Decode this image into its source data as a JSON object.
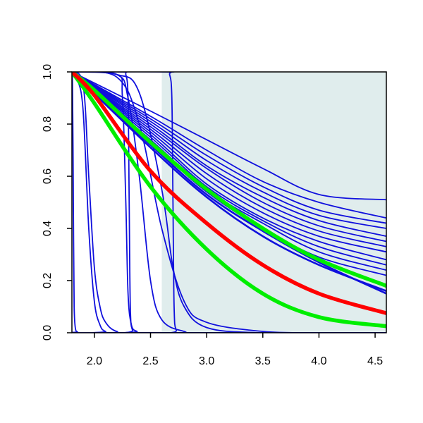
{
  "chart_data": {
    "type": "line",
    "title": "",
    "xlabel": "",
    "ylabel": "",
    "xlim": [
      1.8,
      4.6
    ],
    "ylim": [
      0.0,
      1.0
    ],
    "x_ticks": [
      2.0,
      2.5,
      3.0,
      3.5,
      4.0,
      4.5
    ],
    "x_tick_labels": [
      "2.0",
      "2.5",
      "3.0",
      "3.5",
      "4.0",
      "4.5"
    ],
    "y_ticks": [
      0.0,
      0.2,
      0.4,
      0.6,
      0.8,
      1.0
    ],
    "y_tick_labels": [
      "0.0",
      "0.2",
      "0.4",
      "0.6",
      "0.8",
      "1.0"
    ],
    "grid": false,
    "legend": "none",
    "shaded_region": {
      "x": [
        2.6,
        4.6
      ],
      "color": "#e0eded"
    },
    "colors": {
      "blue": "#1010dd",
      "red": "#ff0000",
      "green": "#00ee00",
      "frame": "#000000"
    },
    "series": [
      {
        "color": "blue",
        "width": "thin",
        "x": [
          1.8,
          2.5,
          3.0,
          3.5,
          4.0,
          4.6
        ],
        "y": [
          1.0,
          0.85,
          0.74,
          0.63,
          0.53,
          0.51
        ]
      },
      {
        "color": "blue",
        "width": "thin",
        "x": [
          1.8,
          2.5,
          3.0,
          3.5,
          4.0,
          4.6
        ],
        "y": [
          1.0,
          0.83,
          0.7,
          0.58,
          0.5,
          0.44
        ]
      },
      {
        "color": "blue",
        "width": "thin",
        "x": [
          1.8,
          2.5,
          3.0,
          3.5,
          4.0,
          4.6
        ],
        "y": [
          1.0,
          0.82,
          0.68,
          0.56,
          0.47,
          0.42
        ]
      },
      {
        "color": "blue",
        "width": "thin",
        "x": [
          1.8,
          2.5,
          3.0,
          3.5,
          4.0,
          4.6
        ],
        "y": [
          1.0,
          0.81,
          0.66,
          0.54,
          0.45,
          0.4
        ]
      },
      {
        "color": "blue",
        "width": "thin",
        "x": [
          1.8,
          2.5,
          3.0,
          3.5,
          4.0,
          4.6
        ],
        "y": [
          1.0,
          0.8,
          0.64,
          0.52,
          0.43,
          0.37
        ]
      },
      {
        "color": "blue",
        "width": "thin",
        "x": [
          1.8,
          2.5,
          3.0,
          3.5,
          4.0,
          4.6
        ],
        "y": [
          1.0,
          0.79,
          0.63,
          0.5,
          0.41,
          0.35
        ]
      },
      {
        "color": "blue",
        "width": "thin",
        "x": [
          1.8,
          2.5,
          3.0,
          3.5,
          4.0,
          4.6
        ],
        "y": [
          1.0,
          0.78,
          0.61,
          0.48,
          0.39,
          0.33
        ]
      },
      {
        "color": "blue",
        "width": "thin",
        "x": [
          1.8,
          2.5,
          3.0,
          3.5,
          4.0,
          4.6
        ],
        "y": [
          1.0,
          0.77,
          0.59,
          0.46,
          0.37,
          0.31
        ]
      },
      {
        "color": "blue",
        "width": "thin",
        "x": [
          1.8,
          2.5,
          3.0,
          3.5,
          4.0,
          4.6
        ],
        "y": [
          1.0,
          0.76,
          0.57,
          0.44,
          0.35,
          0.28
        ]
      },
      {
        "color": "blue",
        "width": "thin",
        "x": [
          1.8,
          2.5,
          3.0,
          3.5,
          4.0,
          4.6
        ],
        "y": [
          1.0,
          0.75,
          0.56,
          0.43,
          0.33,
          0.26
        ]
      },
      {
        "color": "blue",
        "width": "thin",
        "x": [
          1.8,
          2.5,
          3.0,
          3.5,
          4.0,
          4.6
        ],
        "y": [
          1.0,
          0.74,
          0.55,
          0.42,
          0.31,
          0.24
        ]
      },
      {
        "color": "blue",
        "width": "thin",
        "x": [
          1.8,
          2.5,
          3.0,
          3.5,
          4.0,
          4.6
        ],
        "y": [
          1.0,
          0.73,
          0.54,
          0.4,
          0.29,
          0.22
        ]
      },
      {
        "color": "blue",
        "width": "medium",
        "x": [
          1.8,
          2.5,
          3.0,
          3.5,
          4.0,
          4.6
        ],
        "y": [
          1.0,
          0.72,
          0.53,
          0.39,
          0.27,
          0.15
        ]
      },
      {
        "color": "blue",
        "width": "medium",
        "x": [
          1.8,
          2.5,
          3.0,
          3.5,
          4.0,
          4.6
        ],
        "y": [
          1.0,
          0.71,
          0.52,
          0.37,
          0.26,
          0.16
        ]
      },
      {
        "color": "blue",
        "width": "thin",
        "x": [
          1.8,
          2.2,
          2.4,
          2.6,
          2.8,
          3.0,
          3.5,
          4.0,
          4.6
        ],
        "y": [
          1.0,
          0.98,
          0.8,
          0.4,
          0.12,
          0.04,
          0.005,
          0.0,
          0.0
        ]
      },
      {
        "color": "blue",
        "width": "thin",
        "x": [
          1.8,
          2.2,
          2.4,
          2.6,
          2.7,
          2.8,
          3.0,
          3.5,
          4.6
        ],
        "y": [
          1.0,
          0.99,
          0.92,
          0.55,
          0.25,
          0.1,
          0.02,
          0.0,
          0.0
        ]
      },
      {
        "color": "blue",
        "width": "thin",
        "x": [
          1.8,
          2.64,
          2.67,
          2.69,
          2.7,
          2.71,
          2.73,
          2.8,
          4.6
        ],
        "y": [
          1.0,
          1.0,
          0.99,
          0.9,
          0.5,
          0.1,
          0.01,
          0.0,
          0.0
        ]
      },
      {
        "color": "blue",
        "width": "thin",
        "x": [
          1.8,
          2.25,
          2.28,
          2.3,
          2.31,
          2.32,
          2.34,
          2.4,
          4.6
        ],
        "y": [
          1.0,
          1.0,
          0.99,
          0.9,
          0.5,
          0.1,
          0.01,
          0.0,
          0.0
        ]
      },
      {
        "color": "blue",
        "width": "thin",
        "x": [
          1.8,
          2.2,
          2.25,
          2.28,
          2.3,
          2.33,
          2.38,
          2.45,
          4.6
        ],
        "y": [
          1.0,
          0.99,
          0.9,
          0.5,
          0.15,
          0.03,
          0.005,
          0.0,
          0.0
        ]
      },
      {
        "color": "blue",
        "width": "thin",
        "x": [
          1.8,
          2.2,
          2.3,
          2.4,
          2.5,
          2.6,
          2.8,
          3.0,
          4.6
        ],
        "y": [
          1.0,
          0.99,
          0.9,
          0.6,
          0.2,
          0.05,
          0.005,
          0.0,
          0.0
        ]
      },
      {
        "color": "blue",
        "width": "thin",
        "x": [
          1.8,
          1.9,
          1.95,
          2.0,
          2.05,
          2.1,
          2.2,
          2.4,
          4.6
        ],
        "y": [
          1.0,
          0.95,
          0.6,
          0.25,
          0.1,
          0.04,
          0.005,
          0.0,
          0.0
        ]
      },
      {
        "color": "blue",
        "width": "thin",
        "x": [
          1.8,
          1.85,
          1.9,
          1.95,
          2.0,
          2.05,
          2.1,
          2.2,
          4.6
        ],
        "y": [
          1.0,
          0.97,
          0.85,
          0.4,
          0.12,
          0.03,
          0.005,
          0.0,
          0.0
        ]
      },
      {
        "color": "blue",
        "width": "thin",
        "x": [
          1.8,
          1.805,
          1.81,
          1.815,
          1.82,
          1.83,
          1.85,
          1.9,
          4.6
        ],
        "y": [
          1.0,
          0.95,
          0.7,
          0.35,
          0.1,
          0.02,
          0.003,
          0.0,
          0.0
        ]
      },
      {
        "color": "green",
        "width": "thick",
        "x": [
          1.8,
          2.0,
          2.5,
          3.0,
          3.5,
          4.0,
          4.6
        ],
        "y": [
          1.0,
          0.93,
          0.73,
          0.55,
          0.4,
          0.28,
          0.18
        ]
      },
      {
        "color": "green",
        "width": "thick",
        "x": [
          1.8,
          2.0,
          2.5,
          3.0,
          3.5,
          4.0,
          4.6
        ],
        "y": [
          1.0,
          0.88,
          0.56,
          0.32,
          0.15,
          0.06,
          0.025
        ]
      },
      {
        "color": "red",
        "width": "thick",
        "x": [
          1.8,
          2.0,
          2.5,
          3.0,
          3.5,
          4.0,
          4.6
        ],
        "y": [
          1.0,
          0.91,
          0.62,
          0.42,
          0.26,
          0.15,
          0.075
        ]
      }
    ]
  }
}
